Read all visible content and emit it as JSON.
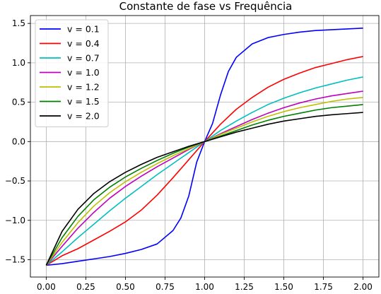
{
  "chart_data": {
    "type": "line",
    "title": "Constante de fase vs Frequência",
    "xlabel": "",
    "ylabel": "",
    "xlim": [
      -0.1,
      2.1
    ],
    "ylim": [
      -1.72,
      1.6
    ],
    "xticks": [
      0.0,
      0.25,
      0.5,
      0.75,
      1.0,
      1.25,
      1.5,
      1.75,
      2.0
    ],
    "xtick_labels": [
      "0.00",
      "0.25",
      "0.50",
      "0.75",
      "1.00",
      "1.25",
      "1.50",
      "1.75",
      "2.00"
    ],
    "yticks": [
      -1.5,
      -1.0,
      -0.5,
      0.0,
      0.5,
      1.0,
      1.5
    ],
    "ytick_labels": [
      "−1.5",
      "−1.0",
      "−0.5",
      "0.0",
      "0.5",
      "1.0",
      "1.5"
    ],
    "grid": true,
    "legend_position": "top-left",
    "series": [
      {
        "name": "v = 0.1",
        "color": "#0000ff",
        "x": [
          0.0,
          0.1,
          0.2,
          0.3,
          0.4,
          0.5,
          0.6,
          0.7,
          0.8,
          0.85,
          0.9,
          0.95,
          1.0,
          1.05,
          1.1,
          1.15,
          1.2,
          1.3,
          1.4,
          1.5,
          1.6,
          1.7,
          1.8,
          1.9,
          2.0
        ],
        "y": [
          -1.571,
          -1.55,
          -1.52,
          -1.49,
          -1.46,
          -1.42,
          -1.37,
          -1.3,
          -1.13,
          -0.97,
          -0.69,
          -0.26,
          0.0,
          0.23,
          0.59,
          0.89,
          1.07,
          1.24,
          1.32,
          1.36,
          1.39,
          1.41,
          1.42,
          1.43,
          1.44
        ]
      },
      {
        "name": "v = 0.4",
        "color": "#ff0000",
        "x": [
          0.0,
          0.1,
          0.2,
          0.3,
          0.4,
          0.5,
          0.6,
          0.7,
          0.8,
          0.9,
          1.0,
          1.1,
          1.2,
          1.3,
          1.4,
          1.5,
          1.6,
          1.7,
          1.8,
          1.9,
          2.0
        ],
        "y": [
          -1.571,
          -1.45,
          -1.36,
          -1.25,
          -1.14,
          -1.02,
          -0.87,
          -0.68,
          -0.46,
          -0.23,
          0.0,
          0.22,
          0.41,
          0.56,
          0.69,
          0.79,
          0.87,
          0.94,
          0.99,
          1.04,
          1.08
        ]
      },
      {
        "name": "v = 0.7",
        "color": "#00bfbf",
        "x": [
          0.0,
          0.1,
          0.2,
          0.3,
          0.4,
          0.5,
          0.6,
          0.7,
          0.8,
          0.9,
          1.0,
          1.1,
          1.2,
          1.3,
          1.4,
          1.5,
          1.6,
          1.7,
          1.8,
          1.9,
          2.0
        ],
        "y": [
          -1.571,
          -1.4,
          -1.22,
          -1.05,
          -0.88,
          -0.72,
          -0.57,
          -0.42,
          -0.28,
          -0.14,
          0.0,
          0.14,
          0.26,
          0.37,
          0.47,
          0.55,
          0.62,
          0.68,
          0.73,
          0.78,
          0.82
        ]
      },
      {
        "name": "v = 1.0",
        "color": "#bf00bf",
        "x": [
          0.0,
          0.1,
          0.2,
          0.3,
          0.4,
          0.5,
          0.6,
          0.7,
          0.8,
          0.9,
          1.0,
          1.1,
          1.2,
          1.3,
          1.4,
          1.5,
          1.6,
          1.7,
          1.8,
          1.9,
          2.0
        ],
        "y": [
          -1.571,
          -1.33,
          -1.1,
          -0.9,
          -0.72,
          -0.57,
          -0.44,
          -0.32,
          -0.21,
          -0.1,
          0.0,
          0.1,
          0.19,
          0.28,
          0.36,
          0.43,
          0.49,
          0.54,
          0.58,
          0.61,
          0.64
        ]
      },
      {
        "name": "v = 1.2",
        "color": "#bfbf00",
        "x": [
          0.0,
          0.1,
          0.2,
          0.3,
          0.4,
          0.5,
          0.6,
          0.7,
          0.8,
          0.9,
          1.0,
          1.1,
          1.2,
          1.3,
          1.4,
          1.5,
          1.6,
          1.7,
          1.8,
          1.9,
          2.0
        ],
        "y": [
          -1.571,
          -1.28,
          -1.03,
          -0.82,
          -0.65,
          -0.51,
          -0.39,
          -0.28,
          -0.18,
          -0.09,
          0.0,
          0.09,
          0.17,
          0.25,
          0.32,
          0.38,
          0.43,
          0.47,
          0.51,
          0.54,
          0.56
        ]
      },
      {
        "name": "v = 1.5",
        "color": "#008000",
        "x": [
          0.0,
          0.1,
          0.2,
          0.3,
          0.4,
          0.5,
          0.6,
          0.7,
          0.8,
          0.9,
          1.0,
          1.1,
          1.2,
          1.3,
          1.4,
          1.5,
          1.6,
          1.7,
          1.8,
          1.9,
          2.0
        ],
        "y": [
          -1.571,
          -1.22,
          -0.95,
          -0.74,
          -0.58,
          -0.45,
          -0.34,
          -0.24,
          -0.15,
          -0.07,
          0.0,
          0.07,
          0.14,
          0.21,
          0.27,
          0.32,
          0.36,
          0.4,
          0.43,
          0.45,
          0.47
        ]
      },
      {
        "name": "v = 2.0",
        "color": "#000000",
        "x": [
          0.0,
          0.1,
          0.2,
          0.3,
          0.4,
          0.5,
          0.6,
          0.7,
          0.8,
          0.9,
          1.0,
          1.1,
          1.2,
          1.3,
          1.4,
          1.5,
          1.6,
          1.7,
          1.8,
          1.9,
          2.0
        ],
        "y": [
          -1.571,
          -1.14,
          -0.86,
          -0.66,
          -0.51,
          -0.39,
          -0.29,
          -0.2,
          -0.13,
          -0.06,
          0.0,
          0.06,
          0.12,
          0.17,
          0.22,
          0.26,
          0.29,
          0.32,
          0.34,
          0.355,
          0.37
        ]
      }
    ]
  }
}
